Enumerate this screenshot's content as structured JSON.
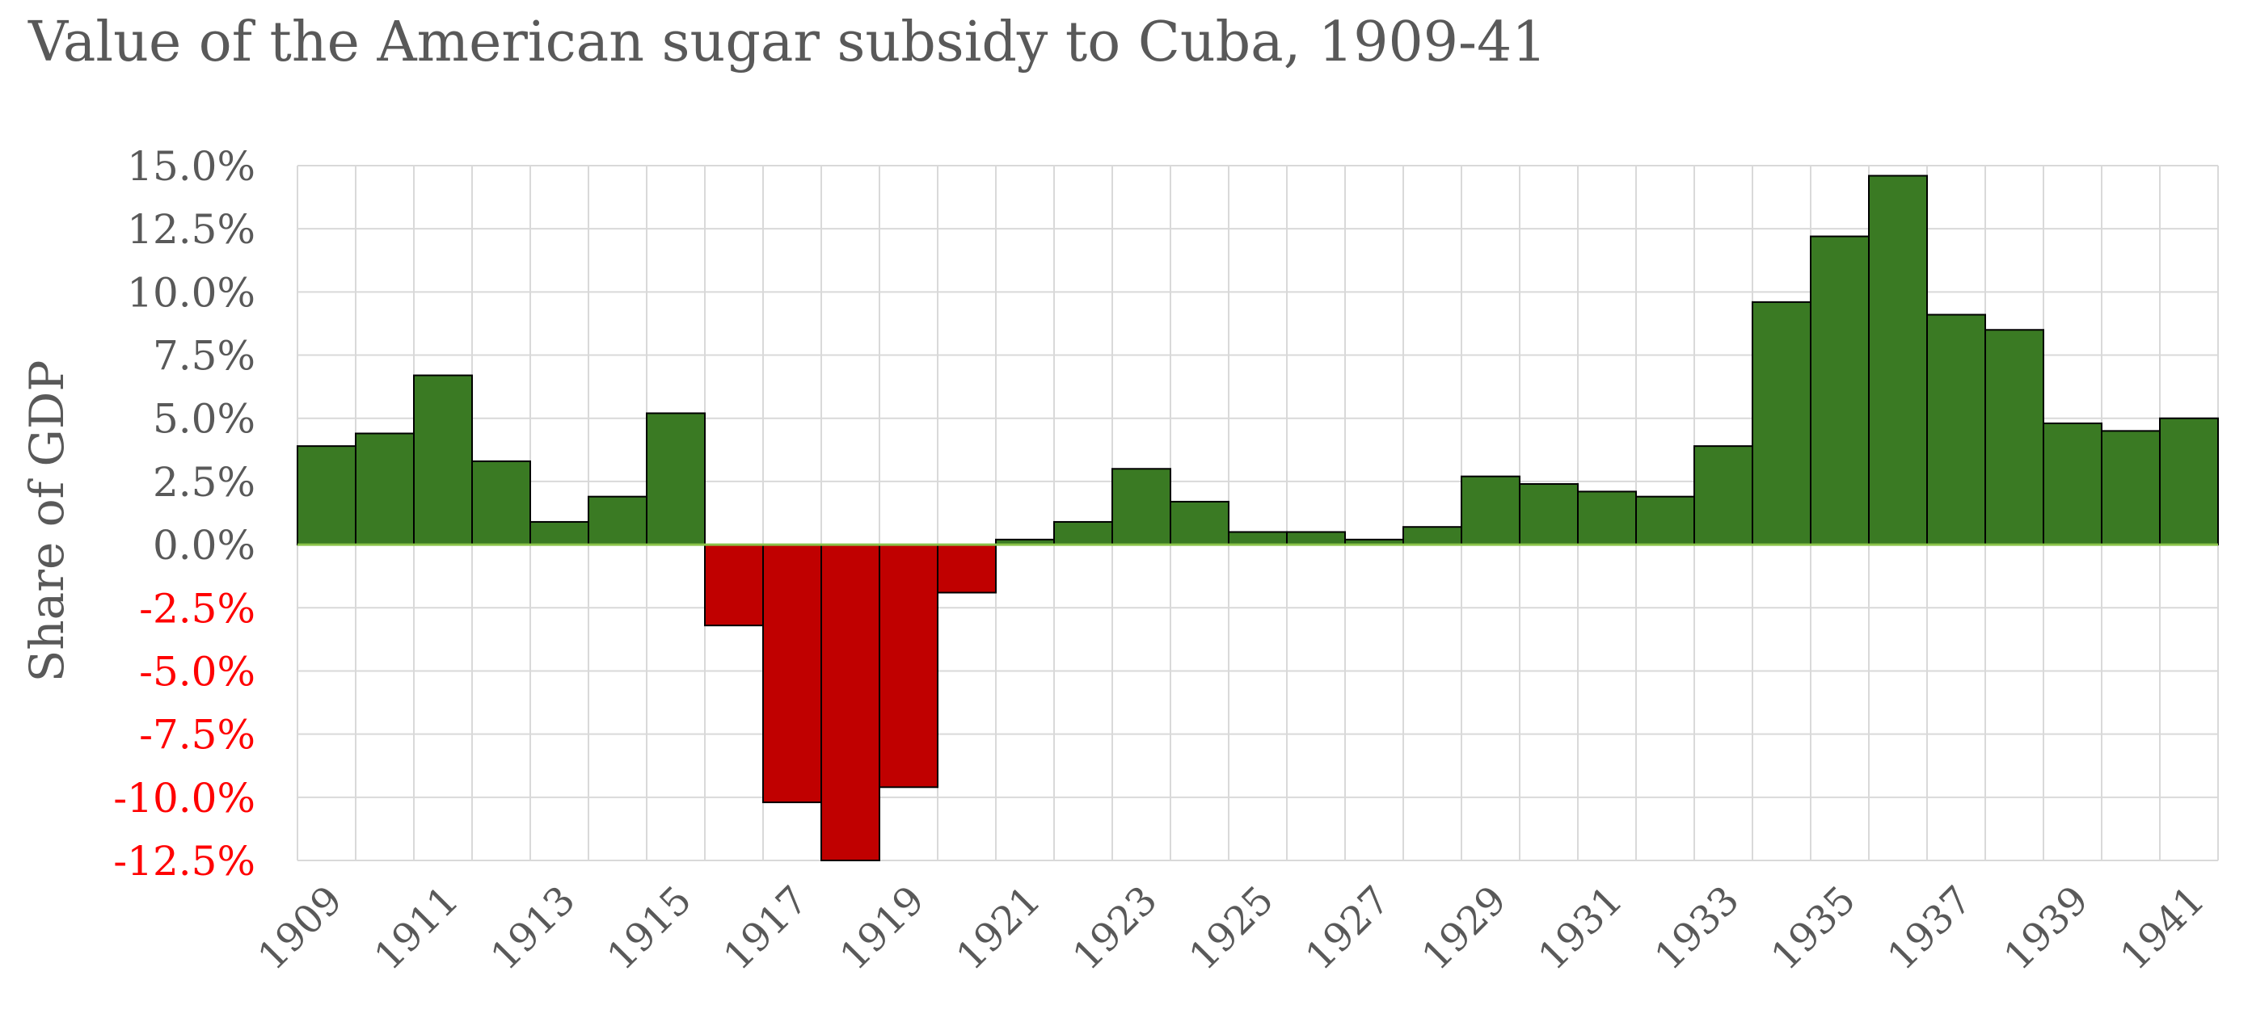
{
  "chart_data": {
    "type": "bar",
    "title": "Value of the American sugar subsidy to Cuba, 1909-41",
    "ylabel": "Share of GDP",
    "xlabel": "",
    "ylim": [
      -12.5,
      15.0
    ],
    "y_ticks": [
      "15.0%",
      "12.5%",
      "10.0%",
      "7.5%",
      "5.0%",
      "2.5%",
      "0.0%",
      "-2.5%",
      "-5.0%",
      "-7.5%",
      "-10.0%",
      "-12.5%"
    ],
    "x_tick_labels": [
      "1909",
      "1911",
      "1913",
      "1915",
      "1917",
      "1919",
      "1921",
      "1923",
      "1925",
      "1927",
      "1929",
      "1931",
      "1933",
      "1935",
      "1937",
      "1939",
      "1941"
    ],
    "categories": [
      "1909",
      "1910",
      "1911",
      "1912",
      "1913",
      "1914",
      "1915",
      "1916",
      "1917",
      "1918",
      "1919",
      "1920",
      "1921",
      "1922",
      "1923",
      "1924",
      "1925",
      "1926",
      "1927",
      "1928",
      "1929",
      "1930",
      "1931",
      "1932",
      "1933",
      "1934",
      "1935",
      "1936",
      "1937",
      "1938",
      "1939",
      "1940",
      "1941"
    ],
    "values": [
      3.9,
      4.4,
      6.7,
      3.3,
      0.9,
      1.9,
      5.2,
      -3.2,
      -10.2,
      -12.5,
      -9.6,
      -1.9,
      0.2,
      0.9,
      3.0,
      1.7,
      0.5,
      0.5,
      0.2,
      0.7,
      2.7,
      2.4,
      2.1,
      1.9,
      3.9,
      9.6,
      12.2,
      14.6,
      9.1,
      8.5,
      4.8,
      4.5,
      5.0
    ],
    "grid": true,
    "colors": {
      "positive": "#3a7a23",
      "negative": "#c00000",
      "negative_tick_label": "#ff0000",
      "text": "#595959",
      "grid": "#d9d9d9",
      "zero_line": "#8bc34a",
      "bar_edge": "#000000"
    }
  }
}
